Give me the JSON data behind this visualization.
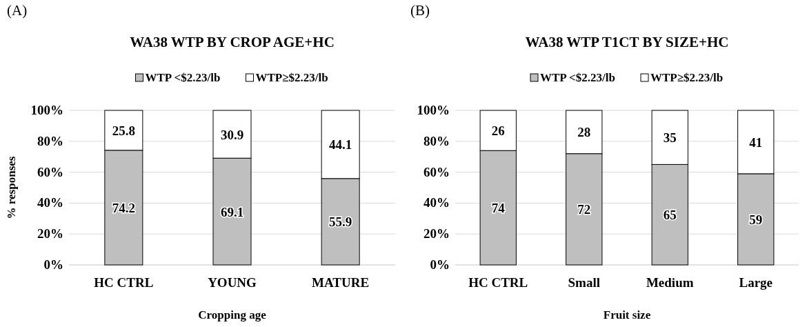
{
  "chart_data": [
    {
      "type": "bar",
      "stacked": true,
      "title": "WA38 WTP BY CROP AGE+HC",
      "annotations": [
        "(A)"
      ],
      "xlabel": "Cropping age",
      "ylabel": "% responses",
      "categories": [
        "HC CTRL",
        "YOUNG",
        "MATURE"
      ],
      "series": [
        {
          "name": "WTP <$2.23/lb",
          "color": "#bfbfbf",
          "values": [
            74.2,
            69.1,
            55.9
          ]
        },
        {
          "name": "WTP≥$2.23/lb",
          "color": "#ffffff",
          "values": [
            25.8,
            30.9,
            44.1
          ]
        }
      ],
      "ylim": [
        0,
        100
      ],
      "yticks": [
        {
          "value": 0,
          "label": "0%"
        },
        {
          "value": 20,
          "label": "20%"
        },
        {
          "value": 40,
          "label": "40%"
        },
        {
          "value": 60,
          "label": "60%"
        },
        {
          "value": 80,
          "label": "80%"
        },
        {
          "value": 100,
          "label": "100%"
        }
      ],
      "grid": "y",
      "legend": "top",
      "data_labels": true
    },
    {
      "type": "bar",
      "stacked": true,
      "title": "WA38 WTP T1CT BY SIZE+HC",
      "annotations": [
        "(B)"
      ],
      "xlabel": "Fruit size",
      "categories": [
        "HC CTRL",
        "Small",
        "Medium",
        "Large"
      ],
      "series": [
        {
          "name": "WTP <$2.23/lb",
          "color": "#bfbfbf",
          "values": [
            74,
            72,
            65,
            59
          ]
        },
        {
          "name": "WTP≥$2.23/lb",
          "color": "#ffffff",
          "values": [
            26,
            28,
            35,
            41
          ]
        }
      ],
      "ylim": [
        0,
        100
      ],
      "yticks": [
        {
          "value": 0,
          "label": "0%"
        },
        {
          "value": 20,
          "label": "20%"
        },
        {
          "value": 40,
          "label": "40%"
        },
        {
          "value": 60,
          "label": "60%"
        },
        {
          "value": 80,
          "label": "80%"
        },
        {
          "value": 100,
          "label": "100%"
        }
      ],
      "grid": "y",
      "legend": "top",
      "data_labels": true
    }
  ]
}
